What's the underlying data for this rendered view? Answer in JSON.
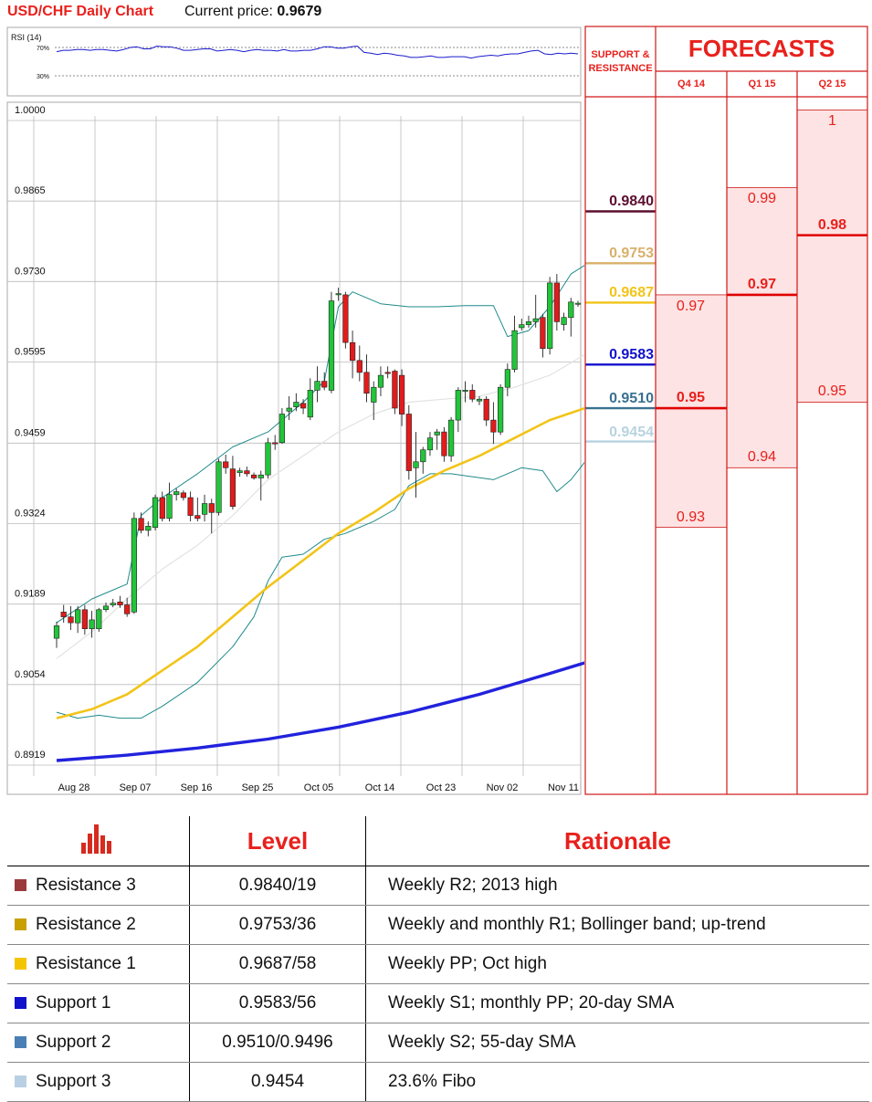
{
  "header": {
    "title": "USD/CHF Daily Chart",
    "price_label": "Current price:",
    "price_value": "0.9679"
  },
  "rsi": {
    "label": "RSI (14)",
    "levels": [
      "70%",
      "30%"
    ],
    "values": [
      64,
      66,
      66,
      67,
      67,
      66,
      67,
      67,
      66,
      65,
      67,
      70,
      71,
      68,
      68,
      72,
      71,
      71,
      69,
      66,
      66,
      67,
      68,
      68,
      65,
      66,
      67,
      66,
      64,
      66,
      67,
      66,
      66,
      65,
      67,
      65,
      65,
      66,
      66,
      68,
      71,
      71,
      69,
      69,
      71,
      72,
      63,
      62,
      60,
      62,
      61,
      59,
      58,
      56,
      56,
      57,
      58,
      56,
      56,
      57,
      57,
      57,
      55,
      57,
      58,
      59,
      58,
      60,
      61,
      61,
      63,
      65,
      66,
      61,
      60,
      62,
      61,
      62,
      61
    ]
  },
  "chart_data": {
    "type": "candlestick",
    "title": "USD/CHF Daily Chart",
    "ylim": [
      0.8919,
      1.0
    ],
    "y_ticks": [
      "1.0000",
      "0.9865",
      "0.9730",
      "0.9595",
      "0.9459",
      "0.9324",
      "0.9189",
      "0.9054",
      "0.8919"
    ],
    "x_ticks": [
      "Aug 28",
      "Sep 07",
      "Sep 16",
      "Sep 25",
      "Oct 05",
      "Oct 14",
      "Oct 23",
      "Nov 02",
      "Nov 11"
    ],
    "candles": [
      {
        "o": 0.9124,
        "h": 0.9152,
        "l": 0.9108,
        "c": 0.9145
      },
      {
        "o": 0.9168,
        "h": 0.918,
        "l": 0.915,
        "c": 0.916
      },
      {
        "o": 0.916,
        "h": 0.9178,
        "l": 0.9138,
        "c": 0.915
      },
      {
        "o": 0.915,
        "h": 0.9178,
        "l": 0.9133,
        "c": 0.9172
      },
      {
        "o": 0.9172,
        "h": 0.918,
        "l": 0.913,
        "c": 0.914
      },
      {
        "o": 0.914,
        "h": 0.917,
        "l": 0.9125,
        "c": 0.9155
      },
      {
        "o": 0.914,
        "h": 0.9175,
        "l": 0.9135,
        "c": 0.9172
      },
      {
        "o": 0.9172,
        "h": 0.9184,
        "l": 0.9168,
        "c": 0.9178
      },
      {
        "o": 0.918,
        "h": 0.919,
        "l": 0.9176,
        "c": 0.9183
      },
      {
        "o": 0.9185,
        "h": 0.9195,
        "l": 0.9175,
        "c": 0.918
      },
      {
        "o": 0.918,
        "h": 0.9192,
        "l": 0.916,
        "c": 0.9165
      },
      {
        "o": 0.9168,
        "h": 0.9335,
        "l": 0.9165,
        "c": 0.9325
      },
      {
        "o": 0.9325,
        "h": 0.9335,
        "l": 0.93,
        "c": 0.9305
      },
      {
        "o": 0.9305,
        "h": 0.932,
        "l": 0.9295,
        "c": 0.9312
      },
      {
        "o": 0.931,
        "h": 0.9365,
        "l": 0.9305,
        "c": 0.936
      },
      {
        "o": 0.936,
        "h": 0.937,
        "l": 0.932,
        "c": 0.9325
      },
      {
        "o": 0.9325,
        "h": 0.9385,
        "l": 0.932,
        "c": 0.9365
      },
      {
        "o": 0.9365,
        "h": 0.9375,
        "l": 0.9355,
        "c": 0.937
      },
      {
        "o": 0.9368,
        "h": 0.9372,
        "l": 0.9355,
        "c": 0.936
      },
      {
        "o": 0.936,
        "h": 0.937,
        "l": 0.932,
        "c": 0.933
      },
      {
        "o": 0.933,
        "h": 0.936,
        "l": 0.932,
        "c": 0.9325
      },
      {
        "o": 0.9332,
        "h": 0.9365,
        "l": 0.932,
        "c": 0.935
      },
      {
        "o": 0.935,
        "h": 0.9358,
        "l": 0.93,
        "c": 0.9335
      },
      {
        "o": 0.9335,
        "h": 0.9425,
        "l": 0.933,
        "c": 0.942
      },
      {
        "o": 0.942,
        "h": 0.9432,
        "l": 0.94,
        "c": 0.941
      },
      {
        "o": 0.9408,
        "h": 0.943,
        "l": 0.934,
        "c": 0.9345
      },
      {
        "o": 0.9402,
        "h": 0.941,
        "l": 0.9395,
        "c": 0.9405
      },
      {
        "o": 0.9405,
        "h": 0.9412,
        "l": 0.9395,
        "c": 0.94
      },
      {
        "o": 0.9398,
        "h": 0.9402,
        "l": 0.939,
        "c": 0.9393
      },
      {
        "o": 0.9393,
        "h": 0.9405,
        "l": 0.9355,
        "c": 0.9398
      },
      {
        "o": 0.9398,
        "h": 0.946,
        "l": 0.9392,
        "c": 0.9452
      },
      {
        "o": 0.9452,
        "h": 0.9465,
        "l": 0.944,
        "c": 0.945
      },
      {
        "o": 0.9452,
        "h": 0.951,
        "l": 0.945,
        "c": 0.95
      },
      {
        "o": 0.9505,
        "h": 0.953,
        "l": 0.949,
        "c": 0.951
      },
      {
        "o": 0.9512,
        "h": 0.9535,
        "l": 0.9505,
        "c": 0.952
      },
      {
        "o": 0.9518,
        "h": 0.9525,
        "l": 0.95,
        "c": 0.951
      },
      {
        "o": 0.9495,
        "h": 0.956,
        "l": 0.949,
        "c": 0.954
      },
      {
        "o": 0.954,
        "h": 0.958,
        "l": 0.952,
        "c": 0.9555
      },
      {
        "o": 0.9555,
        "h": 0.957,
        "l": 0.954,
        "c": 0.9545
      },
      {
        "o": 0.954,
        "h": 0.9705,
        "l": 0.9535,
        "c": 0.969
      },
      {
        "o": 0.97,
        "h": 0.9712,
        "l": 0.969,
        "c": 0.9702
      },
      {
        "o": 0.97,
        "h": 0.9705,
        "l": 0.961,
        "c": 0.962
      },
      {
        "o": 0.962,
        "h": 0.964,
        "l": 0.956,
        "c": 0.959
      },
      {
        "o": 0.959,
        "h": 0.9615,
        "l": 0.9555,
        "c": 0.957
      },
      {
        "o": 0.957,
        "h": 0.96,
        "l": 0.952,
        "c": 0.9535
      },
      {
        "o": 0.952,
        "h": 0.9555,
        "l": 0.949,
        "c": 0.9545
      },
      {
        "o": 0.9545,
        "h": 0.958,
        "l": 0.953,
        "c": 0.9565
      },
      {
        "o": 0.957,
        "h": 0.958,
        "l": 0.956,
        "c": 0.9568
      },
      {
        "o": 0.9572,
        "h": 0.9575,
        "l": 0.95,
        "c": 0.951
      },
      {
        "o": 0.9565,
        "h": 0.9575,
        "l": 0.948,
        "c": 0.95
      },
      {
        "o": 0.95,
        "h": 0.9515,
        "l": 0.939,
        "c": 0.9405
      },
      {
        "o": 0.941,
        "h": 0.947,
        "l": 0.936,
        "c": 0.942
      },
      {
        "o": 0.942,
        "h": 0.9445,
        "l": 0.94,
        "c": 0.944
      },
      {
        "o": 0.944,
        "h": 0.947,
        "l": 0.943,
        "c": 0.946
      },
      {
        "o": 0.9465,
        "h": 0.9475,
        "l": 0.944,
        "c": 0.947
      },
      {
        "o": 0.947,
        "h": 0.9478,
        "l": 0.942,
        "c": 0.943
      },
      {
        "o": 0.943,
        "h": 0.9495,
        "l": 0.942,
        "c": 0.949
      },
      {
        "o": 0.949,
        "h": 0.9545,
        "l": 0.947,
        "c": 0.954
      },
      {
        "o": 0.954,
        "h": 0.9555,
        "l": 0.952,
        "c": 0.954
      },
      {
        "o": 0.954,
        "h": 0.955,
        "l": 0.952,
        "c": 0.9525
      },
      {
        "o": 0.9522,
        "h": 0.953,
        "l": 0.9515,
        "c": 0.9525
      },
      {
        "o": 0.9525,
        "h": 0.953,
        "l": 0.948,
        "c": 0.949
      },
      {
        "o": 0.949,
        "h": 0.952,
        "l": 0.945,
        "c": 0.947
      },
      {
        "o": 0.947,
        "h": 0.955,
        "l": 0.9465,
        "c": 0.9545
      },
      {
        "o": 0.9545,
        "h": 0.9585,
        "l": 0.953,
        "c": 0.9575
      },
      {
        "o": 0.9575,
        "h": 0.9665,
        "l": 0.957,
        "c": 0.964
      },
      {
        "o": 0.9645,
        "h": 0.966,
        "l": 0.964,
        "c": 0.965
      },
      {
        "o": 0.965,
        "h": 0.9665,
        "l": 0.9645,
        "c": 0.9655
      },
      {
        "o": 0.9655,
        "h": 0.97,
        "l": 0.9645,
        "c": 0.966
      },
      {
        "o": 0.9662,
        "h": 0.9668,
        "l": 0.9595,
        "c": 0.961
      },
      {
        "o": 0.961,
        "h": 0.973,
        "l": 0.96,
        "c": 0.972
      },
      {
        "o": 0.972,
        "h": 0.9735,
        "l": 0.964,
        "c": 0.9655
      },
      {
        "o": 0.965,
        "h": 0.967,
        "l": 0.964,
        "c": 0.9662
      },
      {
        "o": 0.9662,
        "h": 0.9695,
        "l": 0.963,
        "c": 0.9688
      },
      {
        "o": 0.9685,
        "h": 0.969,
        "l": 0.968,
        "c": 0.9686
      }
    ],
    "sma20": [
      [
        0,
        0.909
      ],
      [
        5,
        0.9135
      ],
      [
        10,
        0.919
      ],
      [
        15,
        0.924
      ],
      [
        20,
        0.928
      ],
      [
        25,
        0.933
      ],
      [
        30,
        0.939
      ],
      [
        35,
        0.943
      ],
      [
        40,
        0.947
      ],
      [
        45,
        0.95
      ],
      [
        50,
        0.952
      ],
      [
        55,
        0.9525
      ],
      [
        60,
        0.953
      ],
      [
        65,
        0.9545
      ],
      [
        70,
        0.9565
      ],
      [
        75,
        0.96
      ]
    ],
    "sma55": [
      [
        0,
        0.899
      ],
      [
        5,
        0.9005
      ],
      [
        10,
        0.903
      ],
      [
        15,
        0.907
      ],
      [
        20,
        0.911
      ],
      [
        25,
        0.916
      ],
      [
        30,
        0.921
      ],
      [
        35,
        0.9255
      ],
      [
        40,
        0.93
      ],
      [
        45,
        0.9335
      ],
      [
        50,
        0.9375
      ],
      [
        55,
        0.9405
      ],
      [
        60,
        0.943
      ],
      [
        65,
        0.946
      ],
      [
        70,
        0.949
      ],
      [
        75,
        0.951
      ]
    ],
    "sma200": [
      [
        0,
        0.8919
      ],
      [
        10,
        0.8928
      ],
      [
        20,
        0.894
      ],
      [
        30,
        0.8955
      ],
      [
        40,
        0.8975
      ],
      [
        50,
        0.9
      ],
      [
        60,
        0.903
      ],
      [
        70,
        0.9065
      ],
      [
        75,
        0.9083
      ]
    ],
    "bb_upper": [
      [
        0,
        0.915
      ],
      [
        5,
        0.919
      ],
      [
        10,
        0.9215
      ],
      [
        12,
        0.933
      ],
      [
        15,
        0.936
      ],
      [
        20,
        0.94
      ],
      [
        25,
        0.9445
      ],
      [
        30,
        0.947
      ],
      [
        35,
        0.952
      ],
      [
        38,
        0.9555
      ],
      [
        40,
        0.968
      ],
      [
        42,
        0.9705
      ],
      [
        46,
        0.9685
      ],
      [
        50,
        0.968
      ],
      [
        54,
        0.968
      ],
      [
        58,
        0.9682
      ],
      [
        62,
        0.9682
      ],
      [
        64,
        0.963
      ],
      [
        67,
        0.964
      ],
      [
        70,
        0.968
      ],
      [
        73,
        0.9735
      ],
      [
        75,
        0.975
      ]
    ],
    "bb_lower": [
      [
        0,
        0.9
      ],
      [
        3,
        0.899
      ],
      [
        6,
        0.8995
      ],
      [
        9,
        0.899
      ],
      [
        12,
        0.899
      ],
      [
        15,
        0.901
      ],
      [
        20,
        0.905
      ],
      [
        25,
        0.911
      ],
      [
        28,
        0.916
      ],
      [
        30,
        0.922
      ],
      [
        32,
        0.926
      ],
      [
        35,
        0.9265
      ],
      [
        38,
        0.929
      ],
      [
        41,
        0.93
      ],
      [
        45,
        0.932
      ],
      [
        48,
        0.934
      ],
      [
        50,
        0.938
      ],
      [
        53,
        0.94
      ],
      [
        56,
        0.94
      ],
      [
        59,
        0.9395
      ],
      [
        62,
        0.939
      ],
      [
        66,
        0.941
      ],
      [
        69,
        0.9405
      ],
      [
        71,
        0.937
      ],
      [
        73,
        0.939
      ],
      [
        75,
        0.942
      ]
    ]
  },
  "support_resistance": {
    "header_line1": "SUPPORT &",
    "header_line2": "RESISTANCE",
    "levels": [
      {
        "label": "0.9840",
        "value": 0.984,
        "color": "#5c0f2f"
      },
      {
        "label": "0.9753",
        "value": 0.9753,
        "color": "#d9b06a"
      },
      {
        "label": "0.9687",
        "value": 0.9687,
        "color": "#f2c418"
      },
      {
        "label": "0.9583",
        "value": 0.9583,
        "color": "#1111cc"
      },
      {
        "label": "0.9510",
        "value": 0.951,
        "color": "#3a7190"
      },
      {
        "label": "0.9454",
        "value": 0.9454,
        "color": "#b8d3e0"
      }
    ]
  },
  "forecasts": {
    "title": "FORECASTS",
    "columns": [
      {
        "name": "Q4 14",
        "high": "0.97",
        "mid": "0.95",
        "low": "0.93",
        "high_value": 0.97,
        "mid_value": 0.951,
        "low_value": 0.931
      },
      {
        "name": "Q1 15",
        "high": "0.99",
        "mid": "0.97",
        "low": "0.94",
        "high_value": 0.988,
        "mid_value": 0.97,
        "low_value": 0.941
      },
      {
        "name": "Q2 15",
        "high": "1",
        "mid": "0.98",
        "low": "0.95",
        "high_value": 1.001,
        "mid_value": 0.98,
        "low_value": 0.952
      }
    ]
  },
  "levels_table": {
    "icon": "bar-chart-icon",
    "header_level": "Level",
    "header_rationale": "Rationale",
    "rows": [
      {
        "name": "Resistance 3",
        "level": "0.9840/19",
        "rationale": "Weekly R2; 2013 high",
        "color": "#9b3a3a"
      },
      {
        "name": "Resistance 2",
        "level": "0.9753/36",
        "rationale": "Weekly and monthly R1; Bollinger band; up-trend",
        "color": "#c8a000"
      },
      {
        "name": "Resistance 1",
        "level": "0.9687/58",
        "rationale": "Weekly PP; Oct high",
        "color": "#f5c400"
      },
      {
        "name": "Support 1",
        "level": "0.9583/56",
        "rationale": "Weekly S1; monthly PP; 20-day SMA",
        "color": "#1111cc"
      },
      {
        "name": "Support 2",
        "level": "0.9510/0.9496",
        "rationale": "Weekly S2; 55-day SMA",
        "color": "#4a7fb5"
      },
      {
        "name": "Support 3",
        "level": "0.9454",
        "rationale": "23.6% Fibo",
        "color": "#b9cfe3"
      }
    ]
  }
}
